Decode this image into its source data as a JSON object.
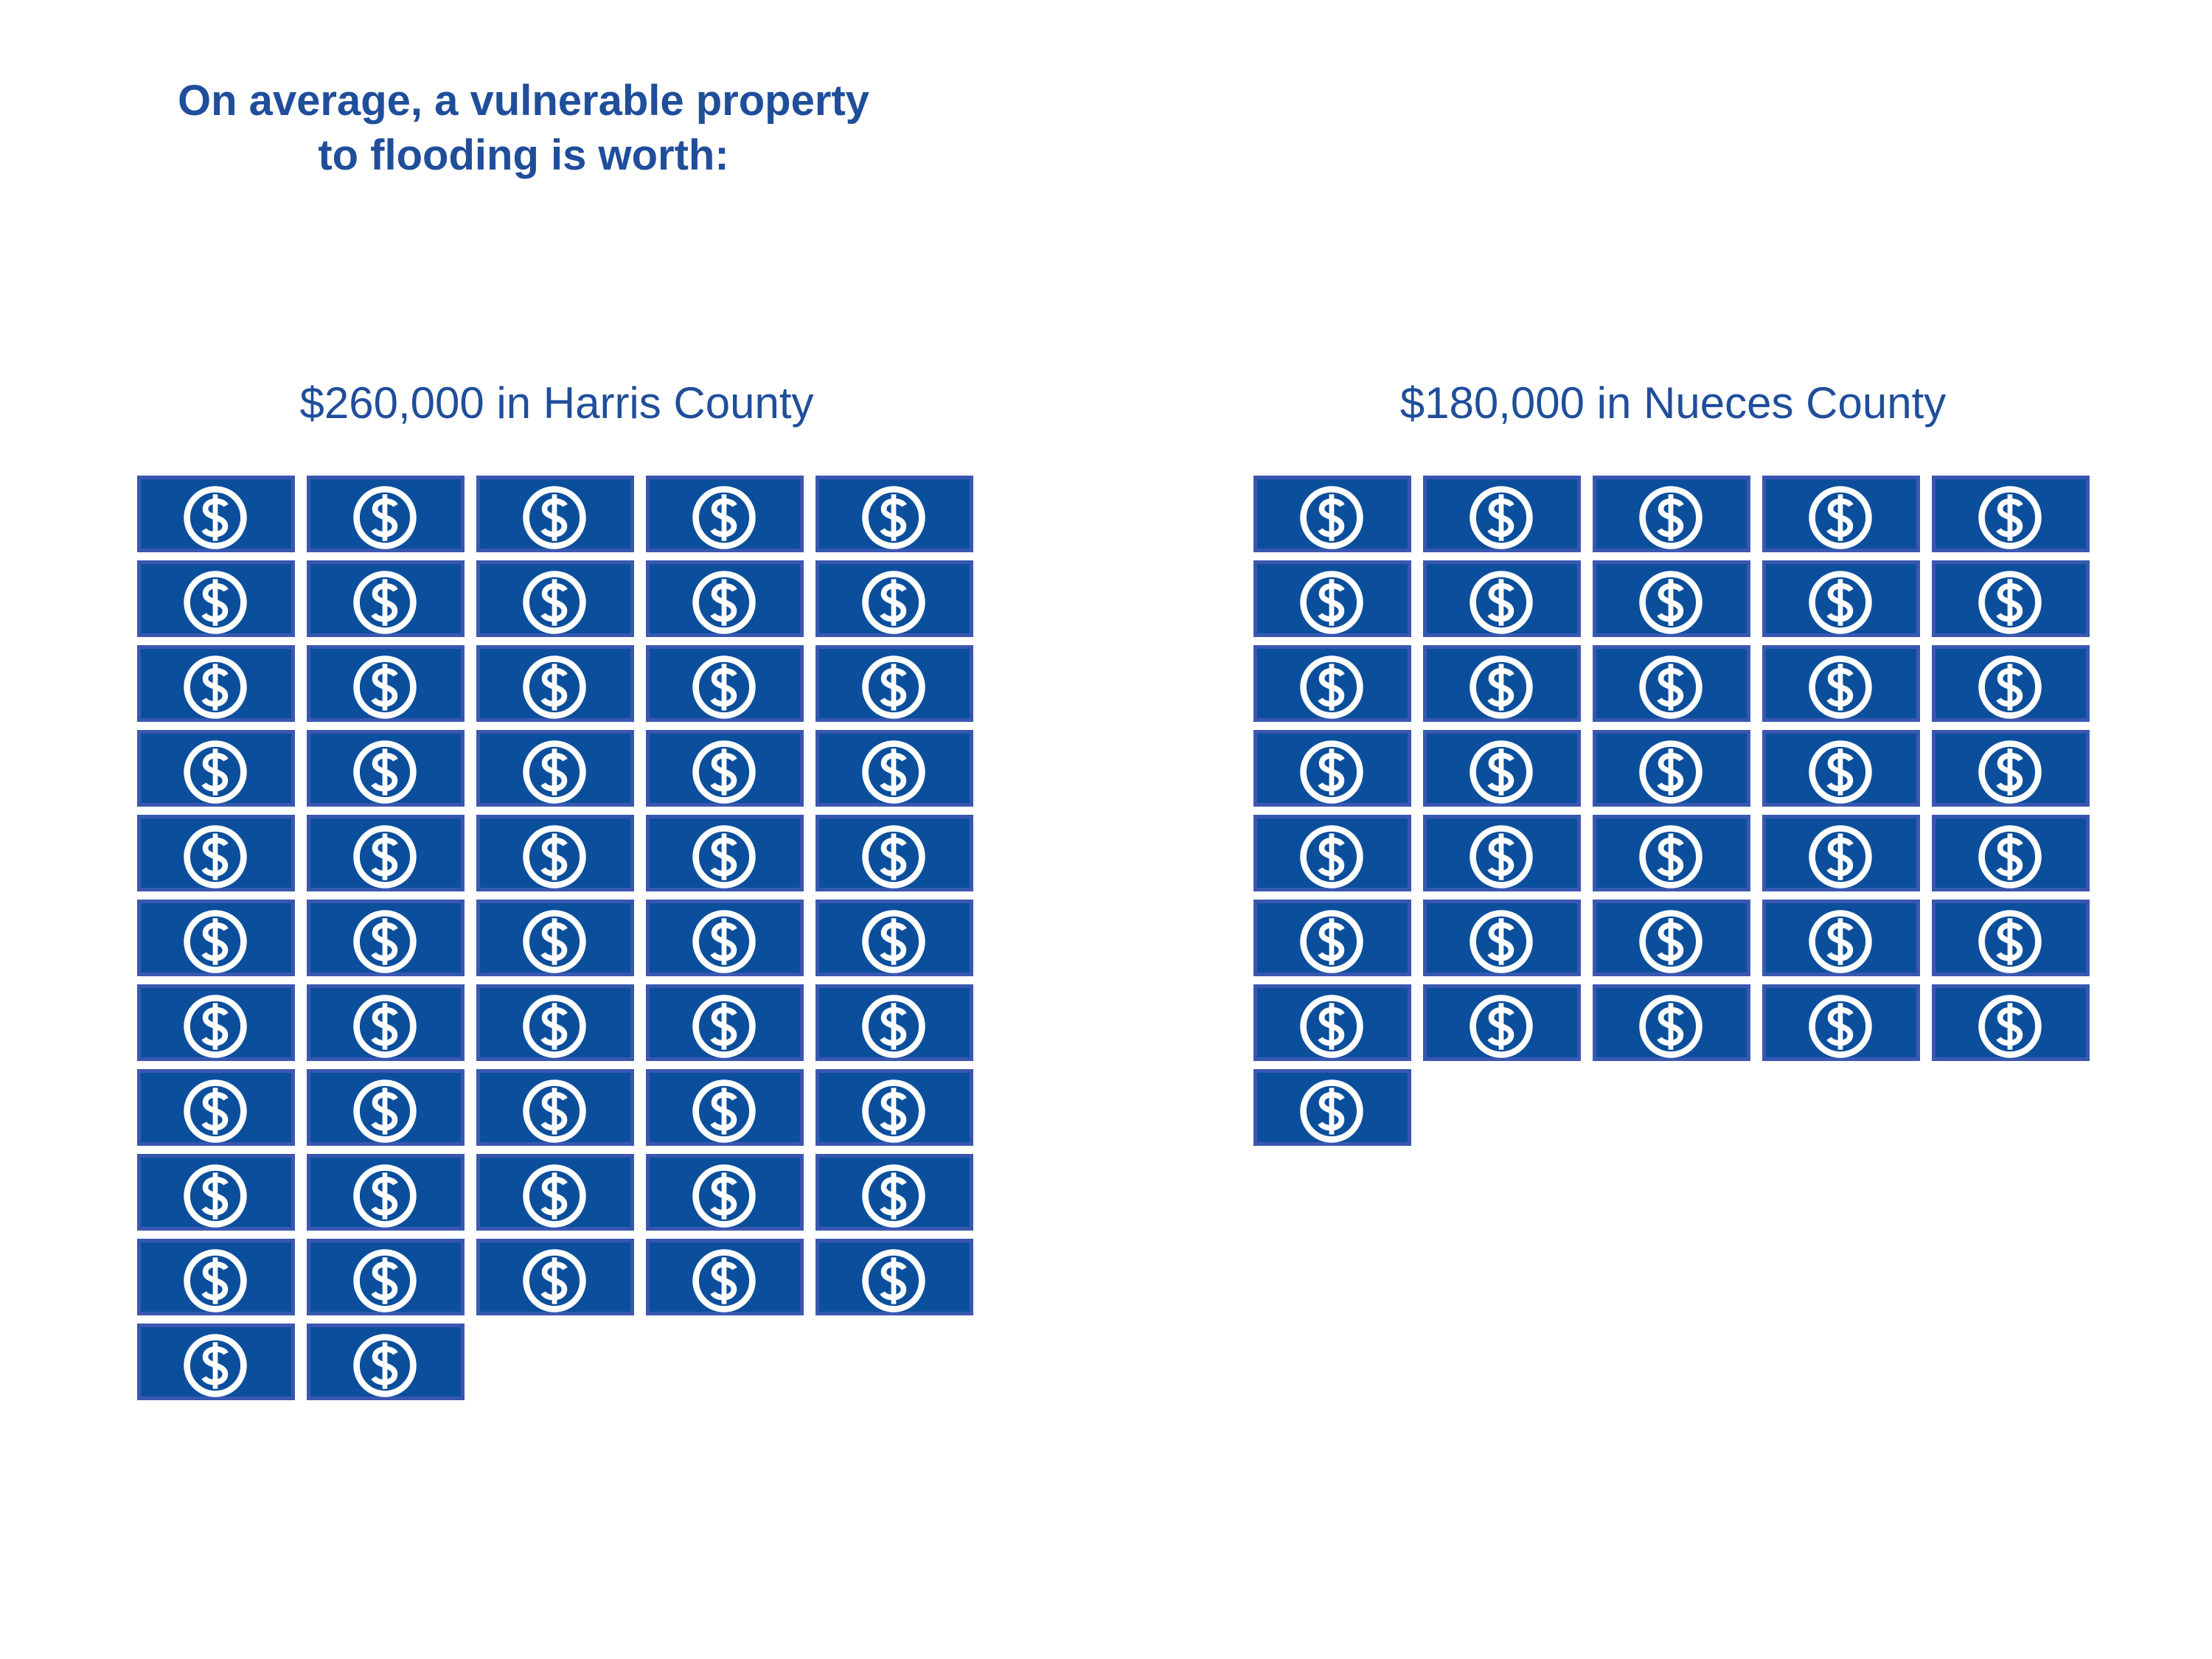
{
  "headline": {
    "line1": "On average, a vulnerable property",
    "line2": "to flooding is worth:"
  },
  "chart_data": [
    {
      "type": "pictograph",
      "title": "$260,000 in Harris County",
      "value": 260000,
      "icon": "dollar-bill-icon",
      "icon_count": 52,
      "icons_per_row": 5
    },
    {
      "type": "pictograph",
      "title": "$180,000 in Nueces County",
      "value": 180000,
      "icon": "dollar-bill-icon",
      "icon_count": 36,
      "icons_per_row": 5
    }
  ],
  "colors": {
    "text": "#1f4e9a",
    "bill_fill": "#0b4f9c",
    "bill_border": "#3a57b0",
    "symbol": "#ffffff"
  }
}
